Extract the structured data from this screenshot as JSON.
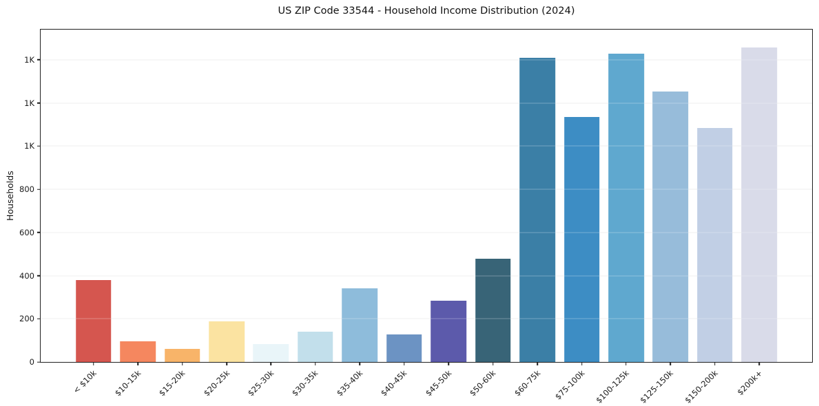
{
  "figure": {
    "background": "#ffffff",
    "spine_color": "#1f1f1f",
    "grid_color": "#e9e9e9",
    "tick_color": "#1a1a1a"
  },
  "chart_data": {
    "type": "bar",
    "title": "US ZIP Code 33544 - Household Income Distribution (2024)",
    "xlabel": "",
    "ylabel": "Households",
    "categories": [
      "< $10k",
      "$10-15k",
      "$15-20k",
      "$20-25k",
      "$25-30k",
      "$30-35k",
      "$35-40k",
      "$40-45k",
      "$45-50k",
      "$50-60k",
      "$60-75k",
      "$75-100k",
      "$100-125k",
      "$125-150k",
      "$150-200k",
      "$200k+"
    ],
    "values": [
      380,
      95,
      60,
      188,
      83,
      141,
      340,
      127,
      283,
      477,
      1410,
      1135,
      1430,
      1253,
      1085,
      1458
    ],
    "bar_colors": [
      "#d5564f",
      "#f5875f",
      "#f8b469",
      "#fbe3a1",
      "#e9f5f9",
      "#c2dfeb",
      "#8ebcdb",
      "#6c93c3",
      "#5c5aab",
      "#386477",
      "#3b7fa6",
      "#3d8dc4",
      "#5fa8cf",
      "#97bcda",
      "#c1cfe5",
      "#d9dbe9"
    ],
    "ylim": [
      0,
      1540
    ],
    "yticks": [
      {
        "value": 0,
        "label": "0"
      },
      {
        "value": 200,
        "label": "200"
      },
      {
        "value": 400,
        "label": "400"
      },
      {
        "value": 600,
        "label": "600"
      },
      {
        "value": 800,
        "label": "800"
      },
      {
        "value": 1000,
        "label": "1K"
      },
      {
        "value": 1200,
        "label": "1K"
      },
      {
        "value": 1400,
        "label": "1K"
      }
    ],
    "grid": true,
    "legend_position": "none",
    "bar_relative_width": 0.8,
    "x_margin": 0.05
  }
}
